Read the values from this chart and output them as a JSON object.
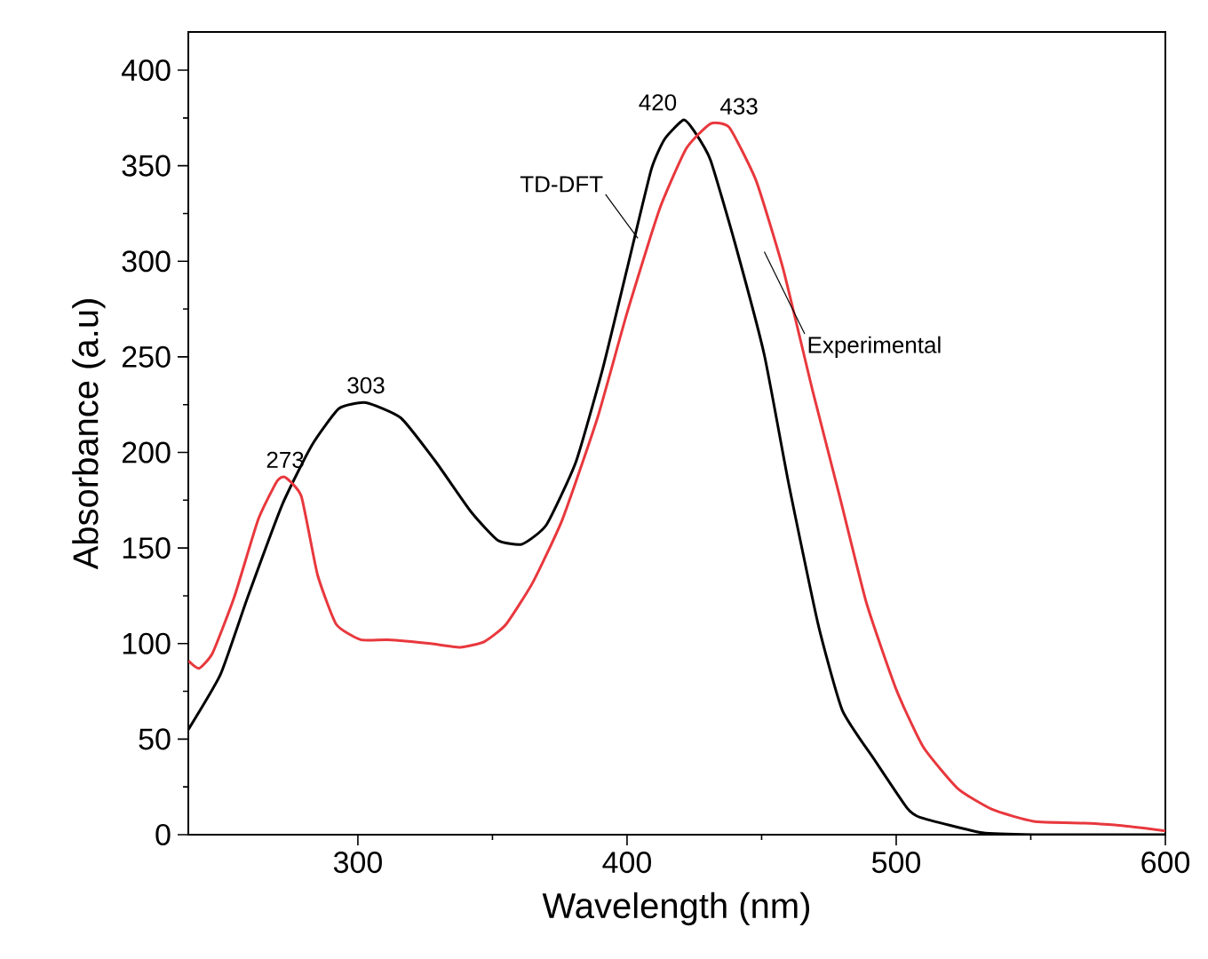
{
  "chart_data": {
    "type": "line",
    "xlabel": "Wavelength (nm)",
    "ylabel": "Absorbance (a.u)",
    "xlim": [
      237,
      600
    ],
    "ylim": [
      0,
      420
    ],
    "xticks": [
      300,
      400,
      500,
      600
    ],
    "yticks": [
      0,
      50,
      100,
      150,
      200,
      250,
      300,
      350,
      400
    ],
    "grid": false,
    "legend": false,
    "marker": "none",
    "line_style": "solid",
    "series": [
      {
        "name": "TD-DFT",
        "color": "#000000",
        "x": [
          237,
          249,
          259,
          272,
          283,
          293,
          303,
          316,
          329,
          342,
          352,
          361,
          370,
          381,
          391,
          400,
          409,
          414,
          421,
          425,
          431,
          440,
          451,
          460,
          471,
          480,
          492,
          504,
          509,
          532,
          551,
          600
        ],
        "values": [
          55,
          84,
          124,
          173,
          204,
          223,
          226,
          218,
          195,
          169,
          154,
          152,
          162,
          195,
          244,
          296,
          348,
          364,
          374,
          368,
          353,
          310,
          251,
          184,
          110,
          65,
          39,
          14,
          9,
          1,
          0,
          0
        ]
      },
      {
        "name": "Experimental",
        "color": "#e8383d",
        "x": [
          237,
          241,
          246,
          254,
          263,
          270,
          273,
          279,
          285,
          292,
          301,
          311,
          327,
          338,
          347,
          355,
          365,
          376,
          389,
          400,
          412,
          422,
          431,
          438,
          448,
          458,
          469,
          479,
          489,
          500,
          510,
          523,
          536,
          551,
          570,
          582,
          600
        ],
        "values": [
          91,
          87,
          95,
          124,
          165,
          185,
          187,
          177,
          136,
          110,
          102,
          102,
          100,
          98,
          101,
          110,
          132,
          165,
          218,
          273,
          327,
          359,
          372,
          370,
          342,
          296,
          232,
          177,
          121,
          76,
          46,
          24,
          13,
          7,
          6,
          5,
          2
        ]
      }
    ],
    "annotations": [
      {
        "text": "273",
        "x": 273,
        "y": 187
      },
      {
        "text": "303",
        "x": 303,
        "y": 226
      },
      {
        "text": "420",
        "x": 420,
        "y": 374
      },
      {
        "text": "433",
        "x": 433,
        "y": 372
      }
    ]
  }
}
